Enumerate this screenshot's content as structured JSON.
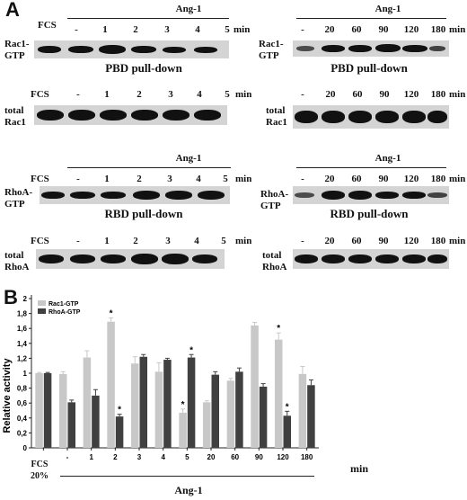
{
  "panel_a": {
    "letter": "A",
    "stimulus": "Ang-1",
    "unit": "min",
    "fcs": "FCS",
    "left_lanes": [
      "-",
      "1",
      "2",
      "3",
      "4",
      "5"
    ],
    "right_lanes": [
      "-",
      "20",
      "60",
      "90",
      "120",
      "180"
    ],
    "rows": {
      "rac_gtp": {
        "label_1": "Rac1-",
        "label_2": "GTP",
        "caption": "PBD pull-down"
      },
      "total_rac": {
        "label_1": "total",
        "label_2": "Rac1"
      },
      "rho_gtp": {
        "label_1": "RhoA-",
        "label_2": "GTP",
        "caption": "RBD pull-down"
      },
      "total_rho": {
        "label_1": "total",
        "label_2": "RhoA"
      }
    }
  },
  "panel_b": {
    "letter": "B",
    "fcs_line1": "FCS",
    "fcs_line2": "20%",
    "unit": "min",
    "stimulus": "Ang-1",
    "significance_marker": "*",
    "colors": {
      "rac": "#c8c8c8",
      "rho": "#404040"
    }
  },
  "chart_data": {
    "type": "bar",
    "categories": [
      "",
      "-",
      "1",
      "2",
      "3",
      "4",
      "5",
      "20",
      "60",
      "90",
      "120",
      "180"
    ],
    "series": [
      {
        "name": "Rac1-GTP",
        "values": [
          1.0,
          0.99,
          1.21,
          1.69,
          1.13,
          1.02,
          0.47,
          0.61,
          0.9,
          1.64,
          1.45,
          0.99
        ],
        "errors": [
          0.01,
          0.03,
          0.09,
          0.05,
          0.09,
          0.12,
          0.05,
          0.02,
          0.03,
          0.04,
          0.09,
          0.1
        ],
        "significant": [
          false,
          false,
          false,
          true,
          false,
          false,
          true,
          false,
          false,
          false,
          true,
          false
        ]
      },
      {
        "name": "RhoA-GTP",
        "values": [
          1.0,
          0.61,
          0.7,
          0.42,
          1.22,
          1.18,
          1.21,
          0.98,
          1.02,
          0.82,
          0.43,
          0.84
        ],
        "errors": [
          0.01,
          0.03,
          0.08,
          0.03,
          0.03,
          0.02,
          0.04,
          0.04,
          0.05,
          0.04,
          0.06,
          0.07
        ],
        "significant": [
          false,
          false,
          false,
          true,
          false,
          false,
          true,
          false,
          false,
          false,
          true,
          false
        ]
      }
    ],
    "ylabel": "Relative activity",
    "xlabel": "min",
    "ylim": [
      0,
      2
    ],
    "yticks": [
      "0",
      "0,2",
      "0,4",
      "0,6",
      "0,8",
      "1",
      "1,2",
      "1,4",
      "1,6",
      "1,8",
      "2"
    ],
    "legend": "top-left"
  }
}
